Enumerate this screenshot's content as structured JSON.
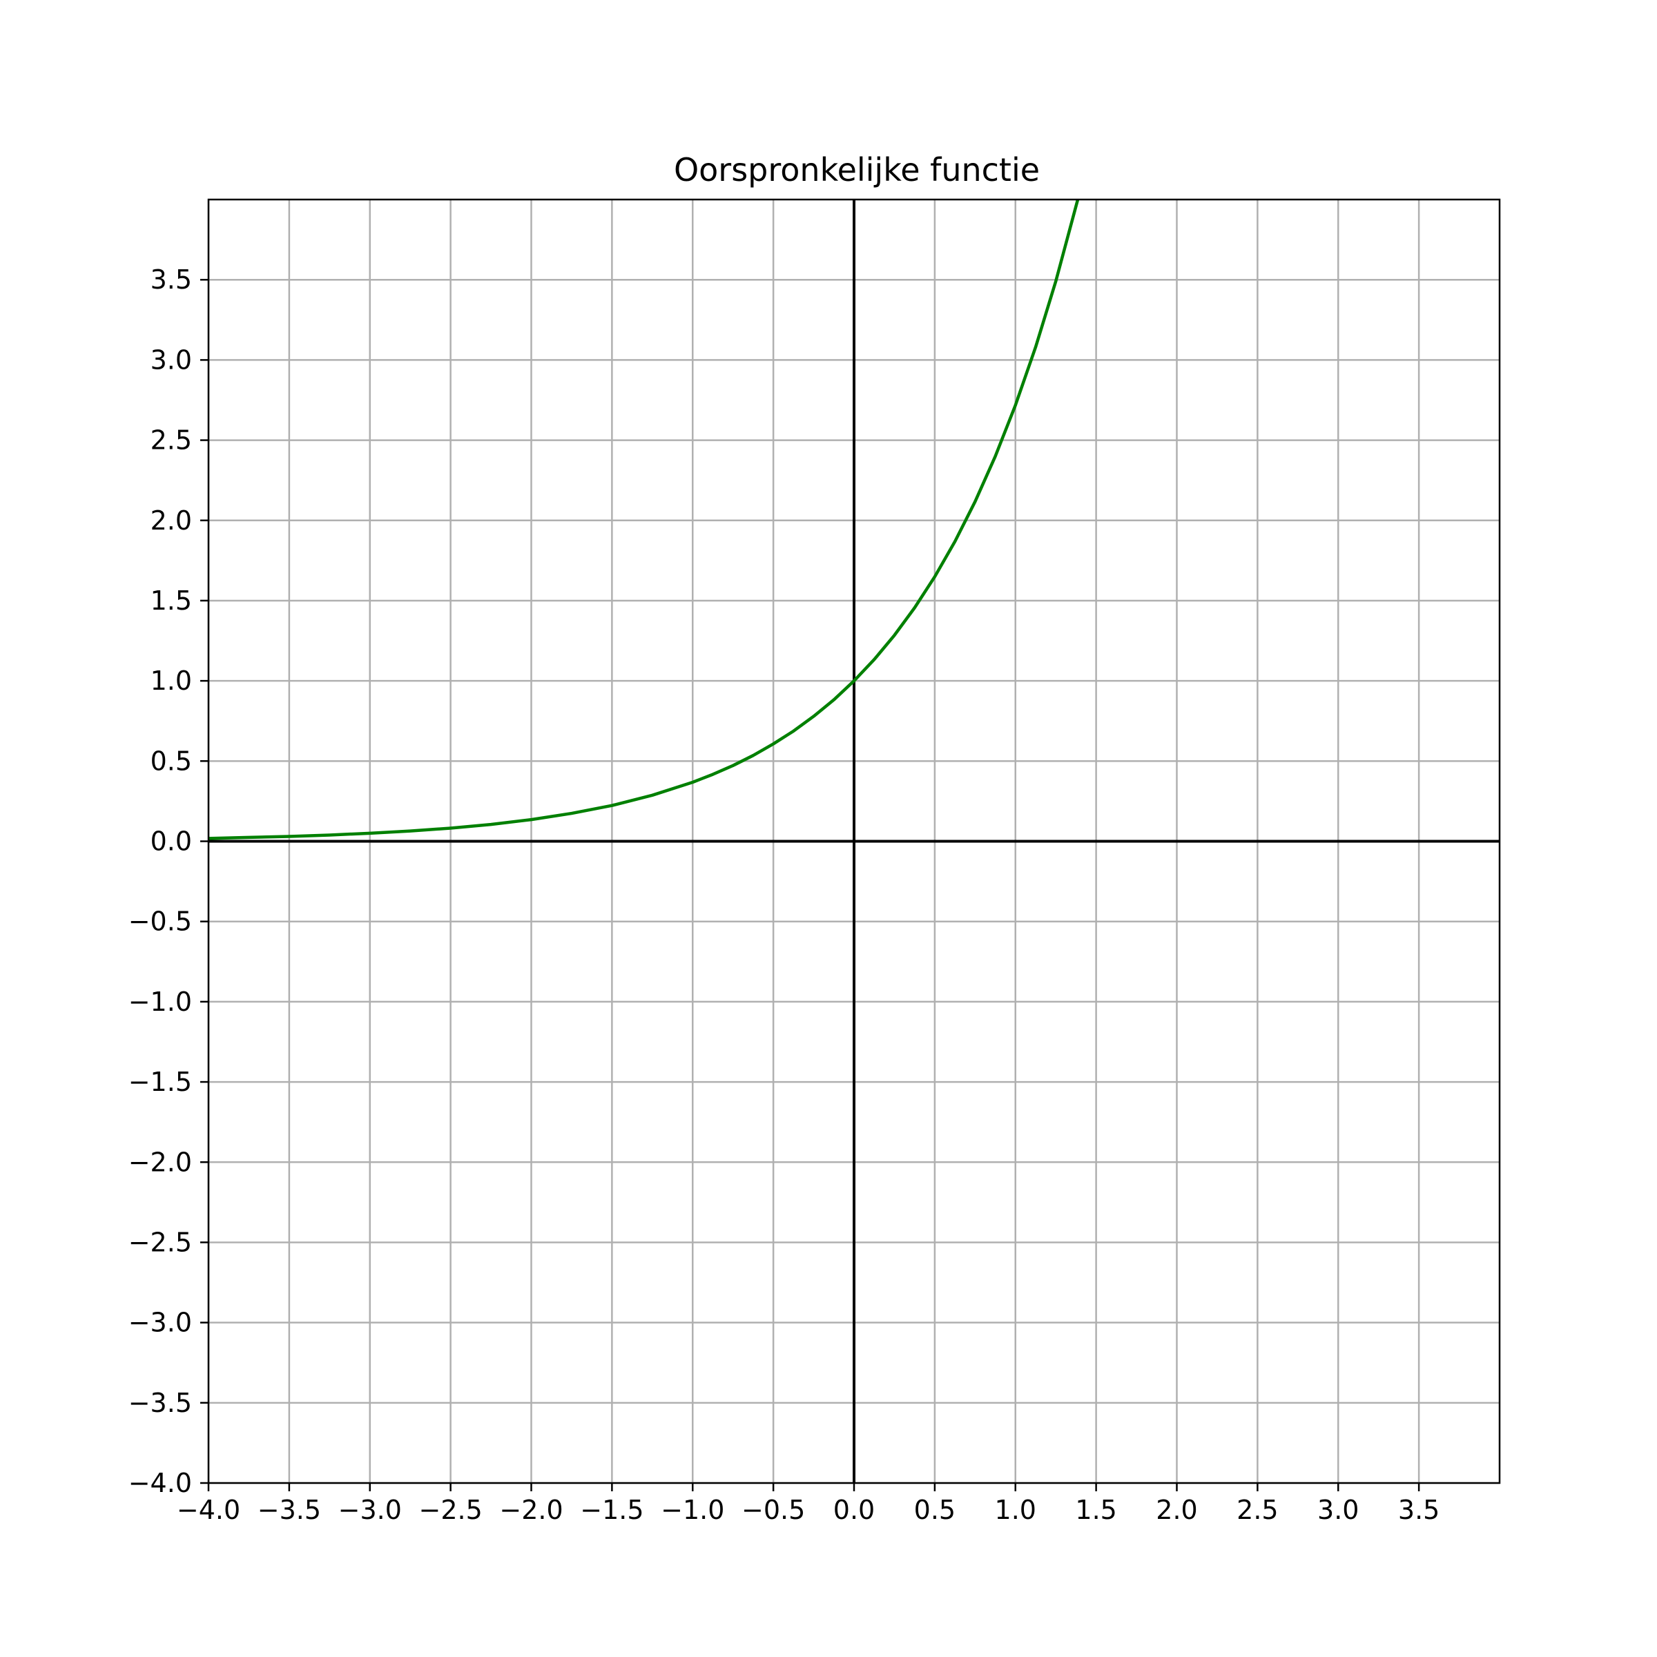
{
  "chart_data": {
    "type": "line",
    "title": "Oorspronkelijke functie",
    "xlabel": "",
    "ylabel": "",
    "xlim": [
      -4,
      4
    ],
    "ylim": [
      -4,
      4
    ],
    "x_ticks": [
      -4.0,
      -3.5,
      -3.0,
      -2.5,
      -2.0,
      -1.5,
      -1.0,
      -0.5,
      0.0,
      0.5,
      1.0,
      1.5,
      2.0,
      2.5,
      3.0,
      3.5
    ],
    "x_tick_labels": [
      "−4.0",
      "−3.5",
      "−3.0",
      "−2.5",
      "−2.0",
      "−1.5",
      "−1.0",
      "−0.5",
      "0.0",
      "0.5",
      "1.0",
      "1.5",
      "2.0",
      "2.5",
      "3.0",
      "3.5"
    ],
    "y_ticks": [
      -4.0,
      -3.5,
      -3.0,
      -2.5,
      -2.0,
      -1.5,
      -1.0,
      -0.5,
      0.0,
      0.5,
      1.0,
      1.5,
      2.0,
      2.5,
      3.0,
      3.5
    ],
    "y_tick_labels": [
      "−4.0",
      "−3.5",
      "−3.0",
      "−2.5",
      "−2.0",
      "−1.5",
      "−1.0",
      "−0.5",
      "0.0",
      "0.5",
      "1.0",
      "1.5",
      "2.0",
      "2.5",
      "3.0",
      "3.5"
    ],
    "grid": true,
    "axes_lines_at_zero": true,
    "series": [
      {
        "color": "#008000",
        "x": [
          -4.0,
          -3.75,
          -3.5,
          -3.25,
          -3.0,
          -2.75,
          -2.5,
          -2.25,
          -2.0,
          -1.75,
          -1.5,
          -1.25,
          -1.0,
          -0.875,
          -0.75,
          -0.625,
          -0.5,
          -0.375,
          -0.25,
          -0.125,
          0.0,
          0.125,
          0.25,
          0.375,
          0.5,
          0.625,
          0.75,
          0.875,
          1.0,
          1.125,
          1.25,
          1.3863
        ],
        "y": [
          0.018,
          0.024,
          0.03,
          0.039,
          0.05,
          0.064,
          0.082,
          0.105,
          0.135,
          0.174,
          0.223,
          0.287,
          0.368,
          0.417,
          0.472,
          0.535,
          0.607,
          0.687,
          0.779,
          0.882,
          1.0,
          1.133,
          1.284,
          1.455,
          1.649,
          1.868,
          2.117,
          2.399,
          2.718,
          3.08,
          3.49,
          4.0
        ]
      }
    ],
    "colors": {
      "grid": "#b0b0b0",
      "zero_axes": "#000000",
      "frame": "#000000"
    }
  }
}
